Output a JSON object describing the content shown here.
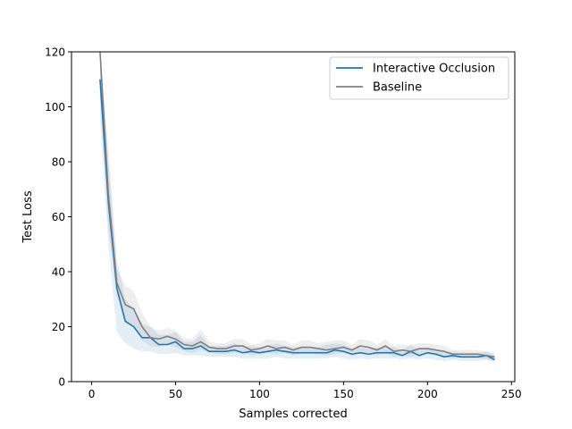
{
  "chart_data": {
    "type": "line",
    "title": "",
    "xlabel": "Samples corrected",
    "ylabel": "Test Loss",
    "xlim": [
      -12,
      252
    ],
    "ylim": [
      0,
      120
    ],
    "xticks": [
      0,
      50,
      100,
      150,
      200,
      250
    ],
    "yticks": [
      0,
      20,
      40,
      60,
      80,
      100,
      120
    ],
    "grid": false,
    "legend_position": "top-right",
    "x": [
      5,
      10,
      15,
      20,
      25,
      30,
      35,
      40,
      45,
      50,
      55,
      60,
      65,
      70,
      75,
      80,
      85,
      90,
      95,
      100,
      105,
      110,
      115,
      120,
      125,
      130,
      135,
      140,
      145,
      150,
      155,
      160,
      165,
      170,
      175,
      180,
      185,
      190,
      195,
      200,
      205,
      210,
      215,
      220,
      225,
      230,
      235,
      240
    ],
    "series": [
      {
        "name": "Interactive Occlusion",
        "color": "#1f77b4",
        "band_color": "#1f77b4",
        "values": [
          110,
          65,
          34,
          22,
          20,
          16,
          16,
          13.5,
          13.5,
          14.5,
          12,
          12,
          13,
          11,
          11,
          11,
          11.5,
          10.5,
          11,
          10.5,
          11,
          11.5,
          11,
          10.5,
          10.5,
          10.5,
          10.5,
          10.5,
          11.5,
          11,
          10,
          10.5,
          10,
          10.5,
          10.5,
          10.5,
          9.5,
          11,
          9.5,
          10.5,
          10,
          9,
          9.5,
          9,
          9,
          9,
          9.5,
          8
        ],
        "lower": [
          95,
          50,
          18,
          14,
          12,
          11,
          11,
          10,
          10,
          10.5,
          9.5,
          9.5,
          9.5,
          9,
          9,
          9,
          9,
          8.5,
          8.5,
          8.5,
          8.5,
          9,
          8.5,
          8.5,
          8.5,
          8.5,
          8.5,
          8.5,
          9,
          8.5,
          8,
          8.5,
          8,
          8.5,
          8.5,
          8.5,
          8,
          8.5,
          8,
          8.5,
          8,
          7.5,
          8,
          7.5,
          7.5,
          7.5,
          8,
          7
        ],
        "upper": [
          120,
          80,
          45,
          30,
          26,
          21,
          20,
          17,
          17,
          18,
          14.5,
          14.5,
          17,
          13,
          13,
          13,
          14,
          12.5,
          13,
          12.5,
          13,
          14,
          13,
          12.5,
          12.5,
          12.5,
          12.5,
          13.5,
          14,
          13.5,
          12,
          12.5,
          12,
          12.5,
          12.5,
          12.5,
          11.5,
          13.5,
          11.5,
          12.5,
          12,
          10.5,
          11,
          10.5,
          10.5,
          10.5,
          11,
          9.5
        ]
      },
      {
        "name": "Baseline",
        "color": "#7f7f7f",
        "band_color": "#8c8c8c",
        "values": [
          120,
          68,
          36,
          28,
          26.5,
          20,
          16,
          15.5,
          16.5,
          15.5,
          13.5,
          13,
          14.5,
          12.5,
          12,
          12,
          13,
          13,
          11.5,
          12,
          13,
          12,
          12.5,
          11.5,
          12.5,
          12.5,
          12,
          11.5,
          12,
          12.5,
          11.5,
          13,
          12.5,
          11.5,
          13,
          11,
          11.5,
          11,
          12,
          12,
          11.5,
          11,
          10,
          10,
          10,
          10,
          9.5,
          9
        ],
        "lower": [
          105,
          55,
          31,
          21,
          20,
          15,
          13,
          12.5,
          13.5,
          12.5,
          11,
          10.5,
          11.5,
          10.5,
          10,
          10,
          10.5,
          10.5,
          9.5,
          10,
          10.5,
          10,
          10.5,
          9.5,
          10.5,
          10.5,
          10,
          9.5,
          10,
          10.5,
          9.5,
          10.5,
          10.5,
          9.5,
          10.5,
          9,
          9.5,
          9,
          10,
          10,
          9.5,
          9,
          8.5,
          8.5,
          8.5,
          8.5,
          8,
          7.5
        ],
        "upper": [
          120,
          85,
          41,
          35,
          33,
          25,
          20,
          18.5,
          19.5,
          18.5,
          16,
          15.5,
          19,
          14.5,
          14,
          14,
          15.5,
          15.5,
          13.5,
          14,
          15.5,
          15,
          15,
          13.5,
          15,
          15,
          14,
          14.5,
          15,
          15,
          13.5,
          15.5,
          15,
          13.5,
          15.5,
          13,
          13.5,
          13,
          14,
          14,
          13.5,
          13,
          11.5,
          11.5,
          11.5,
          11.5,
          11,
          10.5
        ]
      }
    ]
  }
}
